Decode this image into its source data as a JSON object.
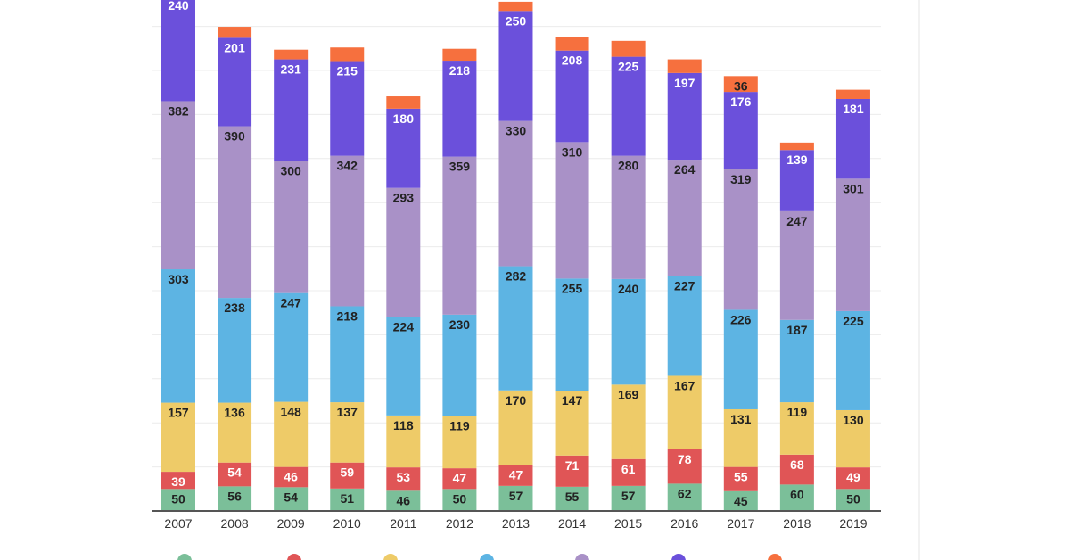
{
  "chart_data": {
    "type": "bar",
    "stacked": true,
    "categories": [
      "2007",
      "2008",
      "2009",
      "2010",
      "2011",
      "2012",
      "2013",
      "2014",
      "2015",
      "2016",
      "2017",
      "2018",
      "2019"
    ],
    "ylim": [
      0,
      1175
    ],
    "grid": true,
    "legend_placement": "bottom",
    "series": [
      {
        "values": [
          50,
          56,
          54,
          51,
          46,
          50,
          57,
          55,
          57,
          62,
          45,
          60,
          50
        ],
        "color": "#7bbf99",
        "label_color": "#222222"
      },
      {
        "values": [
          39,
          54,
          46,
          59,
          53,
          47,
          47,
          71,
          61,
          78,
          55,
          68,
          49
        ],
        "color": "#e05556",
        "label_color": "#ffffff"
      },
      {
        "values": [
          157,
          136,
          148,
          137,
          118,
          119,
          170,
          147,
          169,
          167,
          131,
          119,
          130
        ],
        "color": "#eecb68",
        "label_color": "#222222"
      },
      {
        "values": [
          303,
          238,
          247,
          218,
          224,
          230,
          282,
          255,
          240,
          227,
          226,
          187,
          225
        ],
        "color": "#5db4e3",
        "label_color": "#222222"
      },
      {
        "values": [
          382,
          390,
          300,
          342,
          293,
          359,
          330,
          310,
          280,
          264,
          319,
          247,
          301
        ],
        "color": "#a991c7",
        "label_color": "#222222"
      },
      {
        "values": [
          240,
          201,
          231,
          215,
          180,
          218,
          250,
          208,
          225,
          197,
          176,
          139,
          181
        ],
        "color": "#6b50db",
        "label_color": "#ffffff"
      },
      {
        "values": [
          null,
          25,
          22,
          31,
          28,
          27,
          21,
          31,
          36,
          31,
          36,
          17,
          21
        ],
        "color": "#f6703e",
        "label_color": "#222222"
      }
    ],
    "shown_labels": {
      "6": {
        "10": "36"
      }
    }
  },
  "legend": {
    "swatch_colors": [
      "#7bbf99",
      "#e05556",
      "#eecb68",
      "#5db4e3",
      "#a991c7",
      "#6b50db",
      "#f6703e"
    ]
  },
  "colors": {
    "axis": "#555555",
    "grid": "#ececec"
  }
}
